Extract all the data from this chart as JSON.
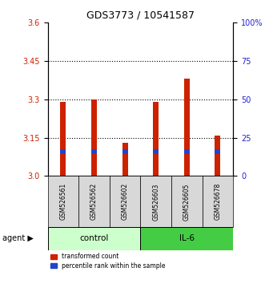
{
  "title": "GDS3773 / 10541587",
  "samples": [
    "GSM526561",
    "GSM526562",
    "GSM526602",
    "GSM526603",
    "GSM526605",
    "GSM526678"
  ],
  "groups": [
    "control",
    "control",
    "control",
    "IL-6",
    "IL-6",
    "IL-6"
  ],
  "transformed_counts": [
    3.29,
    3.3,
    3.13,
    3.29,
    3.38,
    3.16
  ],
  "percentile_bottom": [
    3.085,
    3.085,
    3.085,
    3.085,
    3.085,
    3.085
  ],
  "percentile_top": [
    3.105,
    3.105,
    3.105,
    3.105,
    3.105,
    3.105
  ],
  "ylim": [
    3.0,
    3.6
  ],
  "yticks_left": [
    3.0,
    3.15,
    3.3,
    3.45,
    3.6
  ],
  "yticks_right": [
    0,
    25,
    50,
    75,
    100
  ],
  "bar_color": "#cc2200",
  "blue_color": "#2244cc",
  "control_color": "#ccffcc",
  "il6_color": "#44cc44",
  "sample_box_color": "#d8d8d8",
  "label_color_left": "#cc2200",
  "label_color_right": "#2222cc",
  "grid_lines": [
    3.15,
    3.3,
    3.45
  ],
  "bar_width": 0.18,
  "legend_red": "transformed count",
  "legend_blue": "percentile rank within the sample",
  "agent_label": "agent",
  "group_label_control": "control",
  "group_label_il6": "IL-6"
}
